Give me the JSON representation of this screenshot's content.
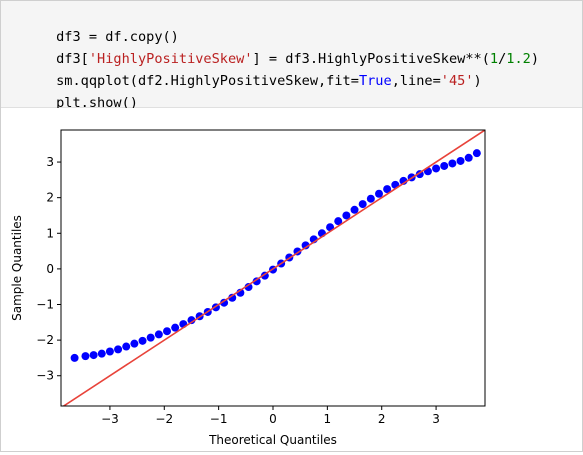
{
  "code": {
    "line1": {
      "a": "df3 = df.copy()"
    },
    "line2": {
      "a": "df3[",
      "str": "'HighlyPositiveSkew'",
      "b": "] = df3.HighlyPositiveSkew**(",
      "n1": "1",
      "c": "/",
      "n2": "1.2",
      "d": ")"
    },
    "line3": {
      "a": "sm.qqplot(df2.HighlyPositiveSkew,fit=",
      "kw": "True",
      "b": ",line=",
      "str": "'45'",
      "c": ")"
    },
    "line4": {
      "a": "plt.show()"
    }
  },
  "colors": {
    "points": "#0000ff",
    "reference_line": "#e8433a",
    "string": "#ba2121",
    "number": "#008000",
    "keyword": "#0000ff"
  },
  "chart_data": {
    "type": "scatter",
    "xlabel": "Theoretical Quantiles",
    "ylabel": "Sample Quantiles",
    "xlim": [
      -3.9,
      3.9
    ],
    "ylim": [
      -3.85,
      3.9
    ],
    "xticks": [
      -3,
      -2,
      -1,
      0,
      1,
      2,
      3
    ],
    "yticks": [
      -3,
      -2,
      -1,
      0,
      1,
      2,
      3
    ],
    "reference_line": "45-degree",
    "series": [
      {
        "x": [
          -3.65,
          -3.45,
          -3.3,
          -3.15,
          -3.0,
          -2.85,
          -2.7,
          -2.55,
          -2.4,
          -2.25,
          -2.1,
          -1.95,
          -1.8,
          -1.65,
          -1.5,
          -1.35,
          -1.2,
          -1.05,
          -0.9,
          -0.75,
          -0.6,
          -0.45,
          -0.3,
          -0.15,
          0.0,
          0.15,
          0.3,
          0.45,
          0.6,
          0.75,
          0.9,
          1.05,
          1.2,
          1.35,
          1.5,
          1.65,
          1.8,
          1.95,
          2.1,
          2.25,
          2.4,
          2.55,
          2.7,
          2.85,
          3.0,
          3.15,
          3.3,
          3.45,
          3.6,
          3.75
        ],
        "y": [
          -2.5,
          -2.45,
          -2.42,
          -2.38,
          -2.32,
          -2.26,
          -2.18,
          -2.1,
          -2.02,
          -1.93,
          -1.84,
          -1.75,
          -1.65,
          -1.55,
          -1.44,
          -1.33,
          -1.21,
          -1.08,
          -0.95,
          -0.81,
          -0.67,
          -0.51,
          -0.35,
          -0.19,
          -0.02,
          0.15,
          0.32,
          0.49,
          0.66,
          0.83,
          1.0,
          1.17,
          1.34,
          1.5,
          1.66,
          1.82,
          1.97,
          2.11,
          2.24,
          2.36,
          2.47,
          2.57,
          2.66,
          2.74,
          2.82,
          2.89,
          2.96,
          3.03,
          3.12,
          3.25
        ]
      }
    ]
  }
}
